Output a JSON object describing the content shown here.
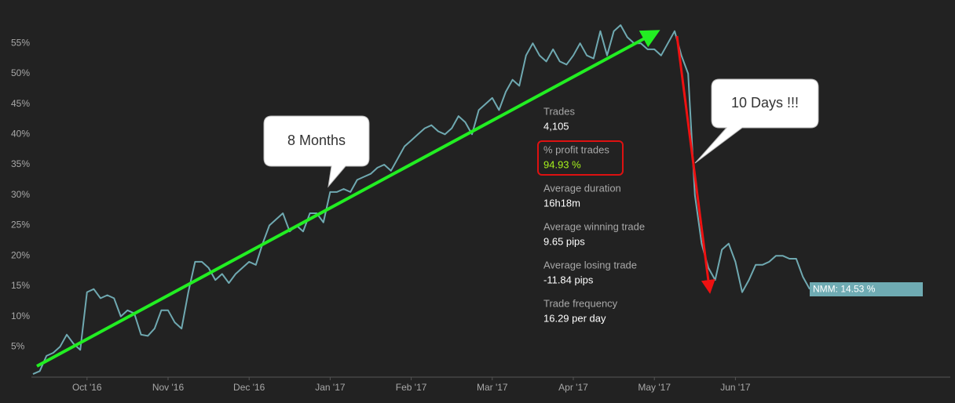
{
  "chart_data": {
    "type": "line",
    "categories": [
      null,
      null,
      null,
      null,
      null,
      null,
      null,
      null,
      "Oct '16",
      null,
      null,
      null,
      null,
      null,
      null,
      null,
      null,
      null,
      null,
      null,
      "Nov '16",
      null,
      null,
      null,
      null,
      null,
      null,
      null,
      null,
      null,
      null,
      null,
      "Dec '16",
      null,
      null,
      null,
      null,
      null,
      null,
      null,
      null,
      null,
      null,
      null,
      "Jan '17",
      null,
      null,
      null,
      null,
      null,
      null,
      null,
      null,
      null,
      null,
      null,
      "Feb '17",
      null,
      null,
      null,
      null,
      null,
      null,
      null,
      null,
      null,
      null,
      null,
      "Mar '17",
      null,
      null,
      null,
      null,
      null,
      null,
      null,
      null,
      null,
      null,
      null,
      "Apr '17",
      null,
      null,
      null,
      null,
      null,
      null,
      null,
      null,
      null,
      null,
      null,
      "May '17",
      null,
      null,
      null,
      null,
      null,
      null,
      null,
      null,
      null,
      null,
      null,
      "Jun '17",
      null,
      null,
      null,
      null,
      null,
      null,
      null,
      null,
      null,
      null,
      null
    ],
    "series": [
      {
        "name": "NMM",
        "color": "#6fa9b1",
        "values": [
          0.5,
          1,
          3.5,
          4,
          5,
          7,
          5.5,
          4.5,
          14,
          14.5,
          13,
          13.5,
          13,
          10,
          11,
          10.5,
          7,
          6.8,
          8,
          11,
          11,
          9,
          8,
          14,
          19,
          19,
          18,
          16,
          17,
          15.5,
          17,
          18,
          19,
          18.5,
          22,
          25,
          26,
          27,
          24,
          25,
          24,
          27,
          27,
          25.5,
          30.5,
          30.5,
          31,
          30.5,
          32.5,
          33,
          33.5,
          34.5,
          35,
          34,
          36,
          38,
          39,
          40,
          41,
          41.5,
          40.5,
          40,
          41,
          43,
          42,
          40,
          44,
          45,
          46,
          44,
          47,
          49,
          48,
          53,
          55,
          53,
          52,
          54,
          52,
          51.5,
          53,
          55,
          53,
          52.5,
          57,
          53,
          57,
          58,
          56,
          55,
          55,
          54,
          54,
          53,
          55,
          57,
          53,
          50,
          30,
          22,
          18,
          16,
          21,
          22,
          19,
          14,
          16,
          18.5,
          18.5,
          19,
          20,
          20,
          19.5,
          19.5,
          16.5,
          14.5
        ]
      }
    ],
    "ylim": [
      0,
      60
    ],
    "yticks": [
      {
        "value": 5,
        "label": "5%"
      },
      {
        "value": 10,
        "label": "10%"
      },
      {
        "value": 15,
        "label": "15%"
      },
      {
        "value": 20,
        "label": "20%"
      },
      {
        "value": 25,
        "label": "25%"
      },
      {
        "value": 30,
        "label": "30%"
      },
      {
        "value": 35,
        "label": "35%"
      },
      {
        "value": 40,
        "label": "40%"
      },
      {
        "value": 45,
        "label": "45%"
      },
      {
        "value": 50,
        "label": "50%"
      },
      {
        "value": 55,
        "label": "55%"
      }
    ],
    "grid": false,
    "end_label": "NMM: 14.53 %",
    "annotations": [
      "8 Months",
      "10 Days !!!"
    ],
    "stats": [
      {
        "label": "Trades",
        "value": "4,105"
      },
      {
        "label": "% profit trades",
        "value": "94.93 %"
      },
      {
        "label": "Average duration",
        "value": "16h18m"
      },
      {
        "label": "Average winning trade",
        "value": "9.65 pips"
      },
      {
        "label": "Average losing trade",
        "value": "-11.84 pips"
      },
      {
        "label": "Trade frequency",
        "value": "16.29 per day"
      }
    ]
  }
}
